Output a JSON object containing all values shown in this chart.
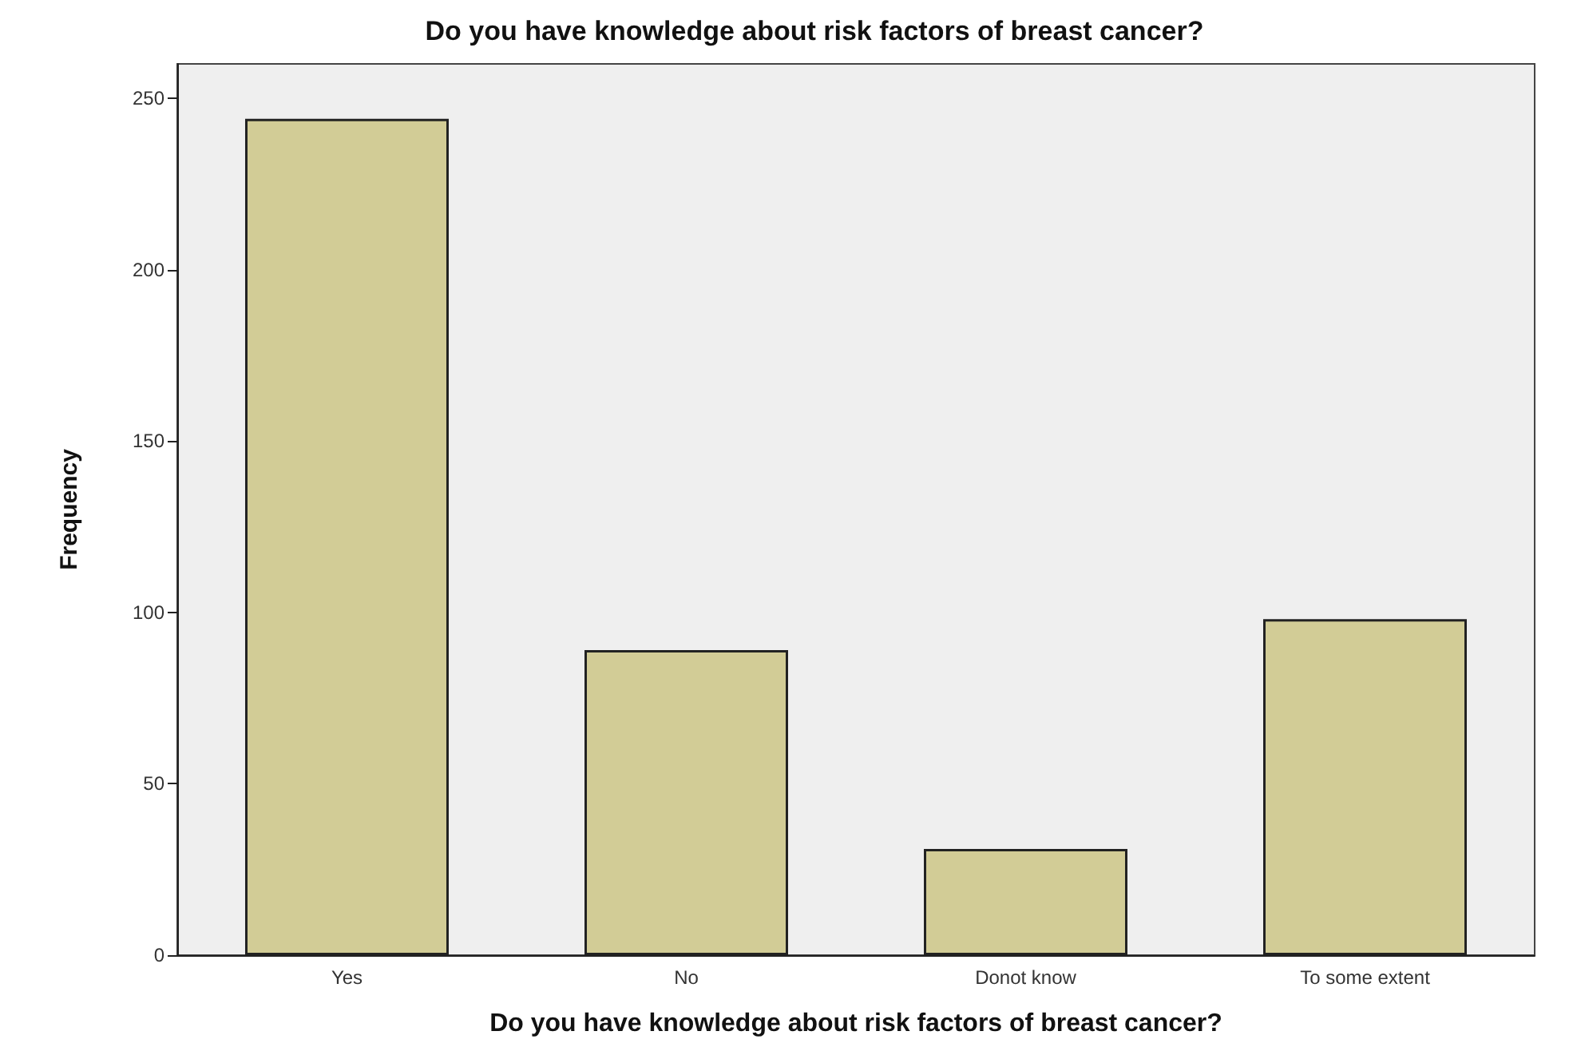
{
  "chart_data": {
    "type": "bar",
    "title": "Do you have knowledge about risk factors of breast cancer?",
    "xlabel": "Do you have knowledge about risk factors of breast cancer?",
    "ylabel": "Frequency",
    "categories": [
      "Yes",
      "No",
      "Donot know",
      "To some extent"
    ],
    "values": [
      244,
      89,
      31,
      98
    ],
    "color": "#d2cc96",
    "ylim": [
      0,
      260
    ],
    "yticks": [
      0,
      50,
      100,
      150,
      200,
      250
    ],
    "grid": false
  }
}
